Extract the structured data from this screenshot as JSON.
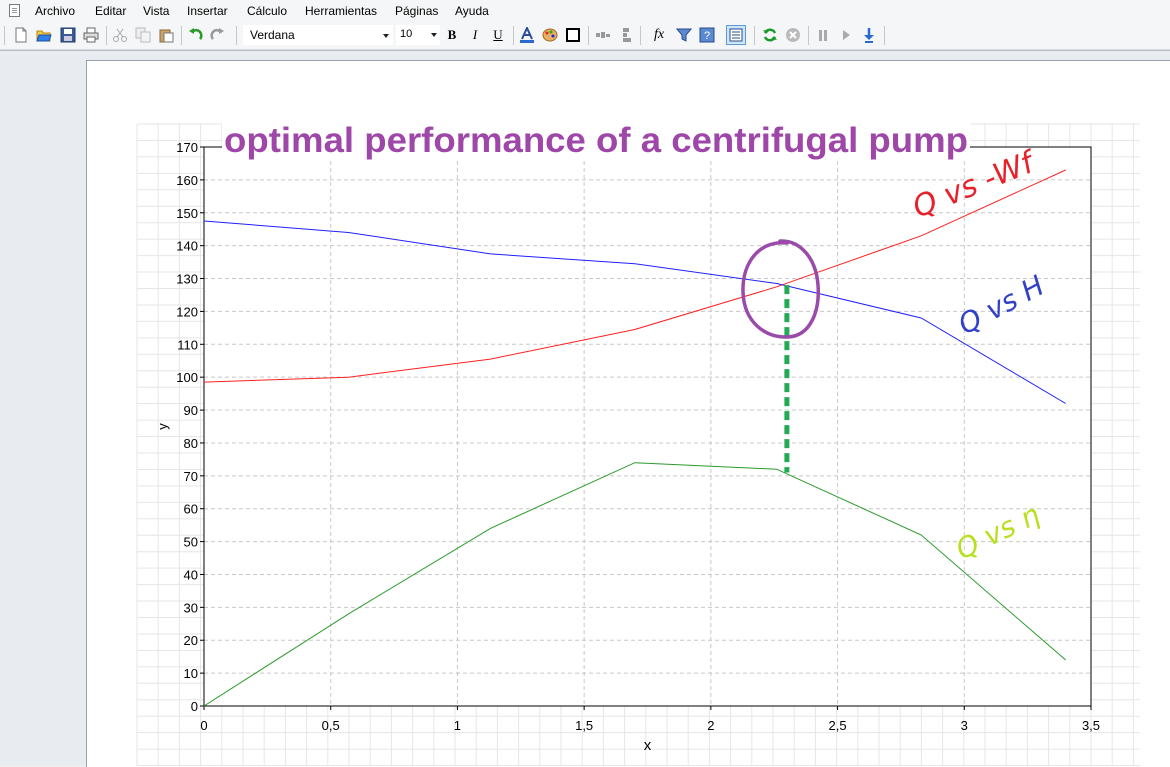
{
  "menu": {
    "items": [
      "Archivo",
      "Editar",
      "Vista",
      "Insertar",
      "Cálculo",
      "Herramientas",
      "Páginas",
      "Ayuda"
    ]
  },
  "toolbar": {
    "font_name": "Verdana",
    "font_size": "10",
    "bold_label": "B",
    "italic_label": "I",
    "underline_label": "U",
    "fx_label": "fx"
  },
  "chart_title": "optimal performance of a centrifugal pump",
  "annotations": {
    "q_vs_wf": "Q vs -Wf",
    "q_vs_h": "Q vs H",
    "q_vs_eta": "Q vs η"
  },
  "colors": {
    "red_series": "#ff2020",
    "blue_series": "#2020ff",
    "green_series": "#2a9a2a",
    "title": "#9e47a8",
    "circle": "#9a4aa8",
    "dashed_marker": "#22aa55",
    "annotation_red": "#e8202a",
    "annotation_blue": "#3040c8",
    "annotation_green": "#b8e020"
  },
  "chart_data": {
    "type": "line",
    "title": "optimal performance of a centrifugal pump",
    "xlabel": "x",
    "ylabel": "y",
    "xlim": [
      0,
      3.5
    ],
    "ylim": [
      0,
      170
    ],
    "x_ticks": [
      "0",
      "0,5",
      "1",
      "1,5",
      "2",
      "2,5",
      "3",
      "3,5"
    ],
    "y_ticks": [
      "0",
      "10",
      "20",
      "30",
      "40",
      "50",
      "60",
      "70",
      "80",
      "90",
      "100",
      "110",
      "120",
      "130",
      "140",
      "150",
      "160",
      "170"
    ],
    "grid": true,
    "series": [
      {
        "color": "#ff2020",
        "x": [
          0,
          0.57,
          1.13,
          1.7,
          2.26,
          2.83,
          3.4
        ],
        "y": [
          98.5,
          100,
          105.5,
          114.5,
          127.5,
          143,
          163
        ]
      },
      {
        "color": "#2020ff",
        "x": [
          0,
          0.57,
          1.13,
          1.7,
          2.26,
          2.83,
          3.4
        ],
        "y": [
          147.5,
          144,
          137.5,
          134.5,
          128.5,
          118,
          92
        ]
      },
      {
        "color": "#2a9a2a",
        "x": [
          0,
          0.57,
          1.13,
          1.7,
          2.26,
          2.83,
          3.4
        ],
        "y": [
          0,
          28,
          54,
          74,
          72,
          52,
          14
        ]
      }
    ],
    "marker_x": 2.3,
    "marker_y_range": [
      71,
      128
    ]
  }
}
